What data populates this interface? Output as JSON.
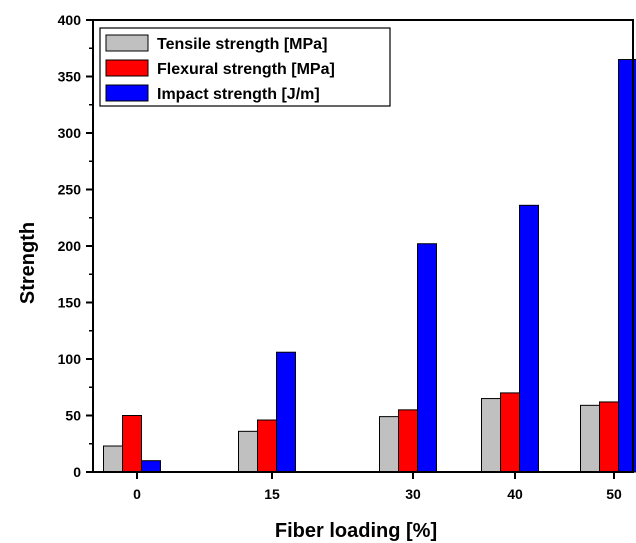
{
  "chart_data": {
    "type": "bar",
    "title": "",
    "xlabel": "Fiber loading [%]",
    "ylabel": "Strength",
    "categories": [
      "0",
      "15",
      "30",
      "40",
      "50"
    ],
    "ylim": [
      0,
      400
    ],
    "yticks": [
      "0",
      "50",
      "100",
      "150",
      "200",
      "250",
      "300",
      "350",
      "400"
    ],
    "grid": false,
    "legend_position": "top-left",
    "series": [
      {
        "name": "Tensile strength [MPa]",
        "color": "#c0c0c0",
        "values": [
          23,
          36,
          49,
          65,
          59
        ]
      },
      {
        "name": "Flexural strength [MPa]",
        "color": "#ff0000",
        "values": [
          50,
          46,
          55,
          70,
          62
        ]
      },
      {
        "name": "Impact strength [J/m]",
        "color": "#0000ff",
        "values": [
          10,
          106,
          202,
          236,
          365
        ]
      }
    ]
  }
}
